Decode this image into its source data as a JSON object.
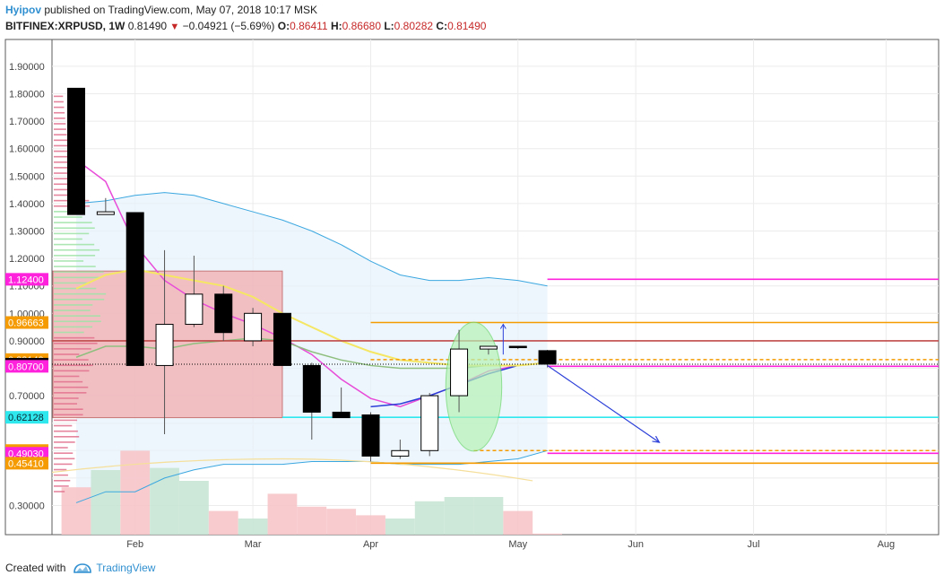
{
  "header": {
    "author": "Hyipov",
    "published_text": "published on TradingView.com, May 07, 2018 10:17 MSK",
    "symbol": "BITFINEX:XRPUSD, 1W",
    "last": "0.81490",
    "change": "−0.04921 (−5.69%)",
    "open_label": "O:",
    "open": "0.86411",
    "high_label": "H:",
    "high": "0.86680",
    "low_label": "L:",
    "low": "0.80282",
    "close_label": "C:",
    "close": "0.81490"
  },
  "footer": {
    "created_with": "Created with",
    "brand": "TradingView"
  },
  "colors": {
    "up_candle": "#ffffff",
    "down_candle": "#000000",
    "volume_up": "#c8e6d4",
    "volume_down": "#f7c5c9",
    "ma_yellow": "#f5e663",
    "ma_green": "#8fbf7f",
    "ma_magenta": "#e84bd8",
    "ma_blue": "#2b3fd8",
    "band_blue": "#3ba7e0",
    "level_magenta": "#ff22dd",
    "level_orange": "#f59b00",
    "level_cyan": "#2ee8ee",
    "level_red": "#c04a4a",
    "rect_red": "#f2b6b8",
    "ellipse_green": "#b6f2b6"
  },
  "chart_data": {
    "type": "candlestick",
    "timeframe": "1W",
    "ylim": [
      0.2,
      1.96
    ],
    "y_ticks": [
      "1.90000",
      "1.80000",
      "1.70000",
      "1.60000",
      "1.50000",
      "1.40000",
      "1.30000",
      "1.20000",
      "1.10000",
      "1.00000",
      "0.90000",
      "0.70000",
      "0.50000",
      "0.30000"
    ],
    "x_ticks": [
      "Feb",
      "Mar",
      "Apr",
      "May",
      "Jun",
      "Jul",
      "Aug"
    ],
    "candles": [
      {
        "o": 1.82,
        "h": 1.82,
        "l": 1.36,
        "c": 1.36
      },
      {
        "o": 1.36,
        "h": 1.42,
        "l": 1.36,
        "c": 1.37
      },
      {
        "o": 1.367,
        "h": 1.367,
        "l": 0.81,
        "c": 0.81
      },
      {
        "o": 0.81,
        "h": 1.23,
        "l": 0.56,
        "c": 0.96
      },
      {
        "o": 0.96,
        "h": 1.21,
        "l": 0.95,
        "c": 1.07
      },
      {
        "o": 1.07,
        "h": 1.1,
        "l": 0.9,
        "c": 0.93
      },
      {
        "o": 0.9,
        "h": 1.02,
        "l": 0.88,
        "c": 1.0
      },
      {
        "o": 1.0,
        "h": 1.0,
        "l": 0.81,
        "c": 0.81
      },
      {
        "o": 0.81,
        "h": 0.82,
        "l": 0.54,
        "c": 0.64
      },
      {
        "o": 0.64,
        "h": 0.73,
        "l": 0.62,
        "c": 0.62
      },
      {
        "o": 0.63,
        "h": 0.64,
        "l": 0.46,
        "c": 0.48
      },
      {
        "o": 0.48,
        "h": 0.54,
        "l": 0.47,
        "c": 0.5
      },
      {
        "o": 0.5,
        "h": 0.71,
        "l": 0.48,
        "c": 0.7
      },
      {
        "o": 0.7,
        "h": 0.94,
        "l": 0.64,
        "c": 0.87
      },
      {
        "o": 0.87,
        "h": 0.88,
        "l": 0.85,
        "c": 0.88
      },
      {
        "o": 0.88,
        "h": 0.88,
        "l": 0.87,
        "c": 0.875
      },
      {
        "o": 0.86411,
        "h": 0.8668,
        "l": 0.80282,
        "c": 0.8149
      }
    ],
    "volume": [
      0.44,
      0.6,
      0.78,
      0.62,
      0.5,
      0.22,
      0.15,
      0.38,
      0.26,
      0.24,
      0.18,
      0.15,
      0.31,
      0.35,
      0.35,
      0.22,
      0.01
    ],
    "moving_averages": [
      {
        "color": "#e84bd8",
        "values": [
          1.56,
          1.48,
          1.25,
          1.12,
          1.05,
          1.0,
          0.96,
          0.91,
          0.85,
          0.76,
          0.69,
          0.66,
          0.7,
          0.74,
          0.79,
          0.81,
          0.82
        ]
      },
      {
        "color": "#2b3fd8",
        "values": [
          null,
          null,
          null,
          null,
          null,
          null,
          null,
          null,
          null,
          null,
          0.66,
          0.67,
          0.7,
          0.74,
          0.78,
          0.81,
          0.82
        ]
      },
      {
        "color": "#8fbf7f",
        "values": [
          0.84,
          0.88,
          0.88,
          0.87,
          0.89,
          0.9,
          0.91,
          0.9,
          0.86,
          0.83,
          0.81,
          0.8,
          0.8,
          0.8,
          0.81,
          0.81,
          0.82
        ]
      },
      {
        "color": "#f5e663",
        "values": [
          1.09,
          1.14,
          1.16,
          1.14,
          1.12,
          1.1,
          1.06,
          1.0,
          0.95,
          0.9,
          0.86,
          0.83,
          0.82,
          0.81,
          0.81,
          0.81,
          0.82
        ]
      }
    ],
    "bands": {
      "upper": [
        1.4,
        1.41,
        1.43,
        1.44,
        1.43,
        1.4,
        1.37,
        1.34,
        1.3,
        1.25,
        1.19,
        1.14,
        1.12,
        1.12,
        1.13,
        1.12,
        1.1
      ],
      "lower": [
        0.31,
        0.35,
        0.35,
        0.4,
        0.43,
        0.45,
        0.45,
        0.45,
        0.46,
        0.46,
        0.46,
        0.45,
        0.45,
        0.45,
        0.46,
        0.47,
        0.5
      ]
    },
    "price_labels": [
      {
        "text": "1.12400",
        "value": 1.124,
        "color": "#ff22dd"
      },
      {
        "text": "0.96663",
        "value": 0.96663,
        "color": "#f59b00"
      },
      {
        "text": "0.83149",
        "value": 0.83149,
        "color": "#f59b00"
      },
      {
        "text": "0.81490",
        "value": 0.8149,
        "color": "#000000"
      },
      {
        "text": "0.80700",
        "value": 0.807,
        "color": "#ff22dd"
      },
      {
        "text": "0.62128",
        "value": 0.62128,
        "color": "#2ee8ee"
      },
      {
        "text": "0.50019",
        "value": 0.50019,
        "color": "#f59b00"
      },
      {
        "text": "0.49030",
        "value": 0.4903,
        "color": "#ff22dd"
      },
      {
        "text": "0.45410",
        "value": 0.4541,
        "color": "#f59b00"
      }
    ],
    "levels": [
      {
        "value": 1.124,
        "color": "#ff22dd",
        "start_week": 16.0
      },
      {
        "value": 0.96663,
        "color": "#f59b00",
        "start_week": 10.0
      },
      {
        "value": 0.9,
        "color": "#c04a4a",
        "start_week": 0
      },
      {
        "value": 0.83149,
        "color": "#f59b00",
        "start_week": 10.0,
        "dashed": true
      },
      {
        "value": 0.8149,
        "color": "#000000",
        "start_week": 0,
        "dotted": true
      },
      {
        "value": 0.807,
        "color": "#ff22dd",
        "start_week": 16.0
      },
      {
        "value": 0.62128,
        "color": "#2ee8ee",
        "start_week": 7.0
      },
      {
        "value": 0.50019,
        "color": "#f59b00",
        "start_week": 13.5,
        "dashed": true
      },
      {
        "value": 0.4903,
        "color": "#ff22dd",
        "start_week": 16.0
      },
      {
        "value": 0.4541,
        "color": "#f59b00",
        "start_week": 10.0
      }
    ],
    "annotations": {
      "red_box": {
        "from_week": 0.0,
        "to_week": 7.0,
        "top": 1.154,
        "bottom": 0.62
      },
      "green_ellipse": {
        "center_week": 13.5,
        "center": 0.733,
        "half_width_weeks": 0.95,
        "half_height": 0.235
      },
      "forecast_arrow": {
        "from_week": 16.0,
        "from": 0.81,
        "to_week": 19.8,
        "to": 0.53
      },
      "up_arrow": {
        "week": 14.5,
        "from": 0.85,
        "to": 0.96
      }
    }
  }
}
